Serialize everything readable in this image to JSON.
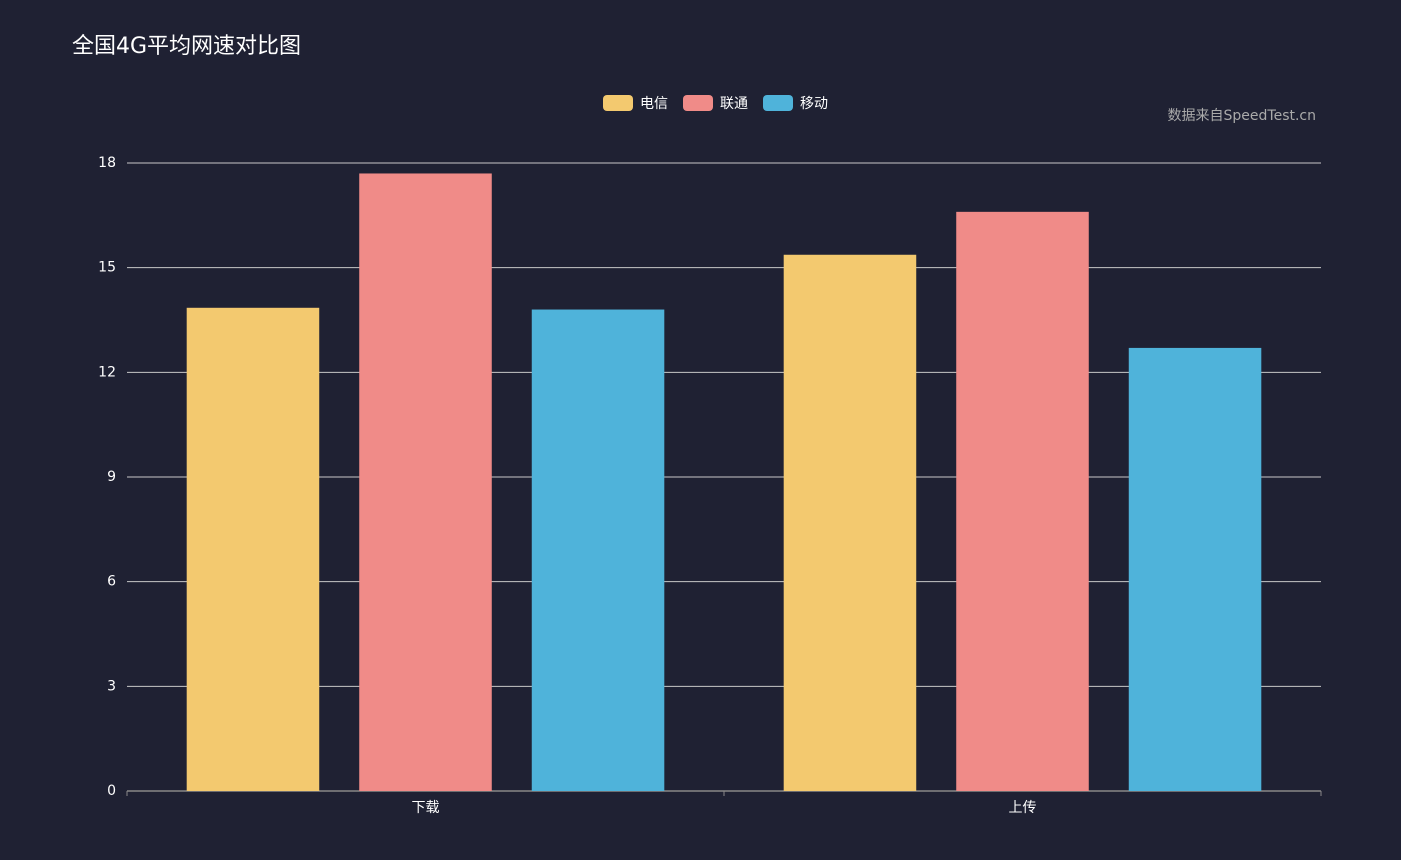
{
  "chart_data": {
    "type": "bar",
    "title": "全国4G平均网速对比图",
    "annotation": "数据来自SpeedTest.cn",
    "categories": [
      "下载",
      "上传"
    ],
    "series": [
      {
        "name": "电信",
        "color": "#f3c96f",
        "values": [
          13.85,
          15.37
        ]
      },
      {
        "name": "联通",
        "color": "#f08b88",
        "values": [
          17.7,
          16.6
        ]
      },
      {
        "name": "移动",
        "color": "#4fb3da",
        "values": [
          13.8,
          12.7
        ]
      }
    ],
    "ylim": [
      0,
      18
    ],
    "yticks": [
      0,
      3,
      6,
      9,
      12,
      15,
      18
    ],
    "grid": true,
    "legend": "top"
  }
}
